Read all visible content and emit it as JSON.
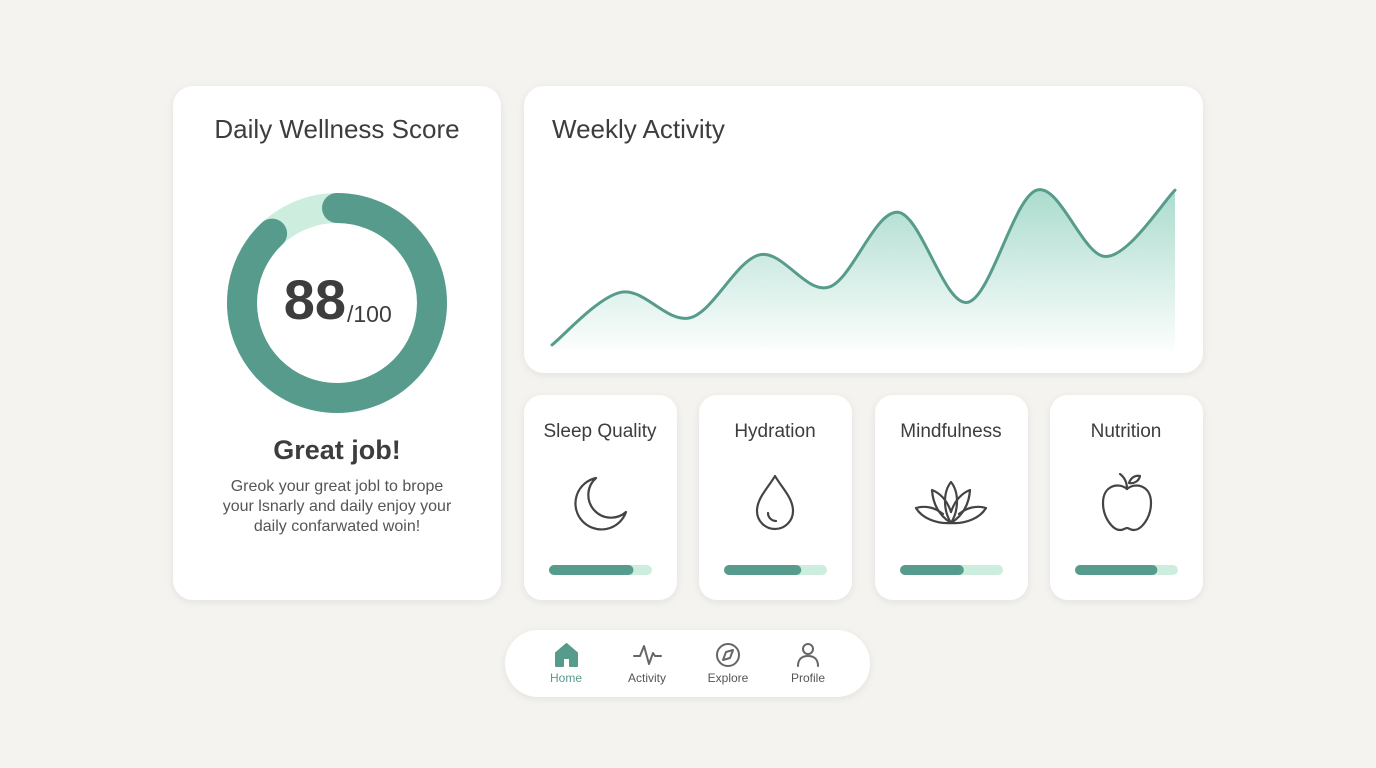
{
  "wellness": {
    "title": "Daily Wellness Score",
    "score": 88,
    "score_max": {
      "value": 100,
      "label": "/100"
    },
    "headline": "Great job!",
    "message": [
      "Greok your great jobl to brope",
      "your lsnarly and daily enjoy your",
      "daily confarwated woin!"
    ]
  },
  "activity": {
    "title": "Weekly Activity",
    "type": "area",
    "values": [
      0.03,
      0.34,
      0.19,
      0.56,
      0.37,
      0.81,
      0.28,
      0.94,
      0.55,
      0.94
    ]
  },
  "metrics": [
    {
      "label": "Sleep Quality",
      "progress": 0.82
    },
    {
      "label": "Hydration",
      "progress": 0.75
    },
    {
      "label": "Mindfulness",
      "progress": 0.62
    },
    {
      "label": "Nutrition",
      "progress": 0.8
    }
  ],
  "nav": [
    {
      "label": "Home",
      "active": true
    },
    {
      "label": "Activity",
      "active": false
    },
    {
      "label": "Explore",
      "active": false
    },
    {
      "label": "Profile",
      "active": false
    }
  ]
}
